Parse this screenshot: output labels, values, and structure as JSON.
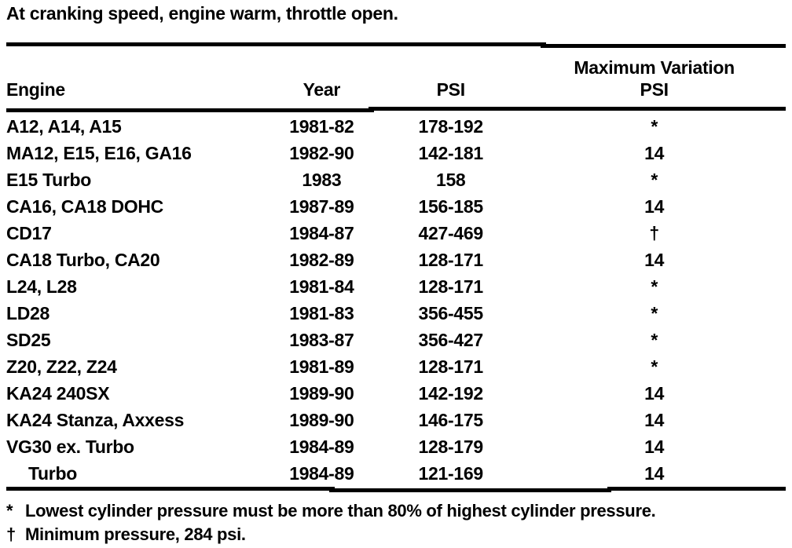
{
  "caption": "At cranking speed, engine warm, throttle open.",
  "table": {
    "header": {
      "engine": "Engine",
      "year": "Year",
      "psi": "PSI",
      "max_variation_line1": "Maximum Variation",
      "max_variation_line2": "PSI"
    },
    "rows": [
      {
        "engine": "A12, A14, A15",
        "year": "1981-82",
        "psi": "178-192",
        "max_variation": "*",
        "indent": false
      },
      {
        "engine": "MA12, E15, E16, GA16",
        "year": "1982-90",
        "psi": "142-181",
        "max_variation": "14",
        "indent": false
      },
      {
        "engine": "E15 Turbo",
        "year": "1983",
        "psi": "158",
        "max_variation": "*",
        "indent": false
      },
      {
        "engine": "CA16, CA18 DOHC",
        "year": "1987-89",
        "psi": "156-185",
        "max_variation": "14",
        "indent": false
      },
      {
        "engine": "CD17",
        "year": "1984-87",
        "psi": "427-469",
        "max_variation": "†",
        "indent": false
      },
      {
        "engine": "CA18 Turbo, CA20",
        "year": "1982-89",
        "psi": "128-171",
        "max_variation": "14",
        "indent": false
      },
      {
        "engine": "L24, L28",
        "year": "1981-84",
        "psi": "128-171",
        "max_variation": "*",
        "indent": false
      },
      {
        "engine": "LD28",
        "year": "1981-83",
        "psi": "356-455",
        "max_variation": "*",
        "indent": false
      },
      {
        "engine": "SD25",
        "year": "1983-87",
        "psi": "356-427",
        "max_variation": "*",
        "indent": false
      },
      {
        "engine": "Z20, Z22, Z24",
        "year": "1981-89",
        "psi": "128-171",
        "max_variation": "*",
        "indent": false
      },
      {
        "engine": "KA24 240SX",
        "year": "1989-90",
        "psi": "142-192",
        "max_variation": "14",
        "indent": false
      },
      {
        "engine": "KA24 Stanza, Axxess",
        "year": "1989-90",
        "psi": "146-175",
        "max_variation": "14",
        "indent": false
      },
      {
        "engine": "VG30 ex. Turbo",
        "year": "1984-89",
        "psi": "128-179",
        "max_variation": "14",
        "indent": false
      },
      {
        "engine": "Turbo",
        "year": "1984-89",
        "psi": "121-169",
        "max_variation": "14",
        "indent": true
      }
    ]
  },
  "footnotes": [
    {
      "marker": "*",
      "text": "Lowest cylinder pressure must be more than 80% of highest cylinder pressure."
    },
    {
      "marker": "†",
      "text": "Minimum pressure, 284 psi."
    }
  ],
  "colors": {
    "ink": "#000000",
    "paper": "#ffffff"
  }
}
